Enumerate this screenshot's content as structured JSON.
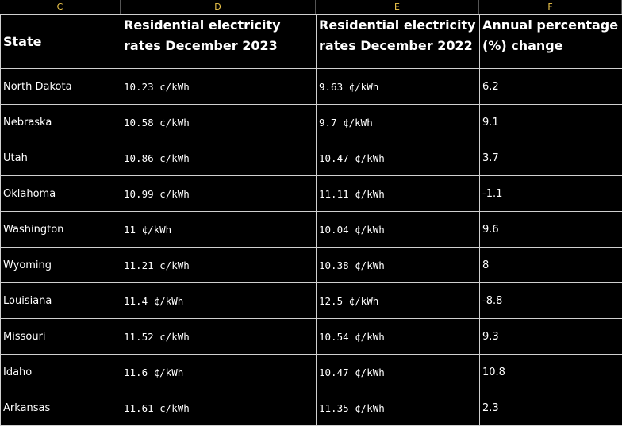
{
  "columns": [
    "C",
    "D",
    "E",
    "F"
  ],
  "headers": {
    "state": "State",
    "dec2023": "Residential electricity rates December 2023",
    "dec2022": "Residential electricity rates December 2022",
    "change": "Annual percentage (%) change"
  },
  "rows": [
    {
      "state": "North Dakota",
      "dec2023": "10.23 ¢/kWh",
      "dec2022": "9.63 ¢/kWh",
      "change": "6.2"
    },
    {
      "state": "Nebraska",
      "dec2023": "10.58 ¢/kWh",
      "dec2022": "9.7 ¢/kWh",
      "change": "9.1"
    },
    {
      "state": "Utah",
      "dec2023": "10.86 ¢/kWh",
      "dec2022": "10.47 ¢/kWh",
      "change": "3.7"
    },
    {
      "state": "Oklahoma",
      "dec2023": "10.99 ¢/kWh",
      "dec2022": "11.11 ¢/kWh",
      "change": "-1.1"
    },
    {
      "state": "Washington",
      "dec2023": "11 ¢/kWh",
      "dec2022": "10.04 ¢/kWh",
      "change": "9.6"
    },
    {
      "state": "Wyoming",
      "dec2023": "11.21 ¢/kWh",
      "dec2022": "10.38 ¢/kWh",
      "change": "8"
    },
    {
      "state": "Louisiana",
      "dec2023": "11.4 ¢/kWh",
      "dec2022": "12.5 ¢/kWh",
      "change": "-8.8"
    },
    {
      "state": "Missouri",
      "dec2023": "11.52 ¢/kWh",
      "dec2022": "10.54 ¢/kWh",
      "change": "9.3"
    },
    {
      "state": "Idaho",
      "dec2023": "11.6 ¢/kWh",
      "dec2022": "10.47 ¢/kWh",
      "change": "10.8"
    },
    {
      "state": "Arkansas",
      "dec2023": "11.61 ¢/kWh",
      "dec2022": "11.35 ¢/kWh",
      "change": "2.3"
    }
  ]
}
